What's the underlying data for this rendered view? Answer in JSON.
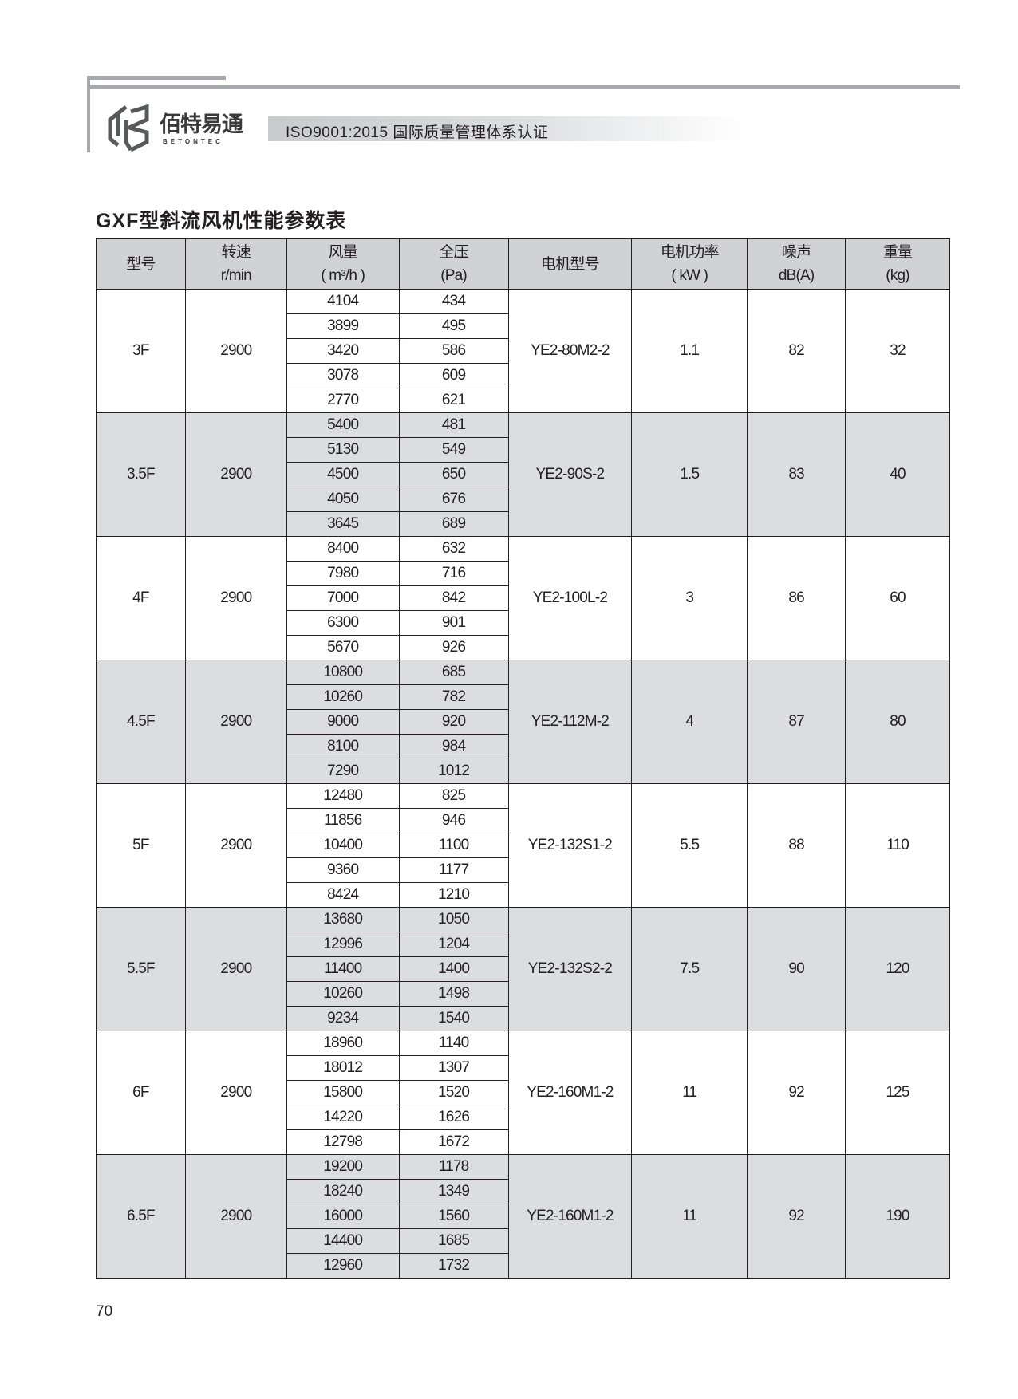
{
  "header": {
    "logo_cn": "佰特易通",
    "logo_en": "BETONTEC",
    "certification": "ISO9001:2015 国际质量管理体系认证"
  },
  "colors": {
    "rule": "#a7a9ac",
    "header_fill": "#d1d2d4",
    "shade_fill": "#dcdddf"
  },
  "title": "GXF型斜流风机性能参数表",
  "table": {
    "headers": [
      {
        "l1": "",
        "l2": "型号"
      },
      {
        "l1": "转速",
        "l2": "r/min"
      },
      {
        "l1": "风量",
        "l2": "( m³/h )"
      },
      {
        "l1": "全压",
        "l2": "(Pa)"
      },
      {
        "l1": "",
        "l2": "电机型号"
      },
      {
        "l1": "电机功率",
        "l2": "( kW )"
      },
      {
        "l1": "噪声",
        "l2": "dB(A)"
      },
      {
        "l1": "重量",
        "l2": "(kg)"
      }
    ],
    "groups": [
      {
        "model": "3F",
        "speed": "2900",
        "flow": [
          "4104",
          "3899",
          "3420",
          "3078",
          "2770"
        ],
        "pressure": [
          "434",
          "495",
          "586",
          "609",
          "621"
        ],
        "motor": "YE2-80M2-2",
        "power": "1.1",
        "noise": "82",
        "weight": "32"
      },
      {
        "model": "3.5F",
        "speed": "2900",
        "flow": [
          "5400",
          "5130",
          "4500",
          "4050",
          "3645"
        ],
        "pressure": [
          "481",
          "549",
          "650",
          "676",
          "689"
        ],
        "motor": "YE2-90S-2",
        "power": "1.5",
        "noise": "83",
        "weight": "40"
      },
      {
        "model": "4F",
        "speed": "2900",
        "flow": [
          "8400",
          "7980",
          "7000",
          "6300",
          "5670"
        ],
        "pressure": [
          "632",
          "716",
          "842",
          "901",
          "926"
        ],
        "motor": "YE2-100L-2",
        "power": "3",
        "noise": "86",
        "weight": "60"
      },
      {
        "model": "4.5F",
        "speed": "2900",
        "flow": [
          "10800",
          "10260",
          "9000",
          "8100",
          "7290"
        ],
        "pressure": [
          "685",
          "782",
          "920",
          "984",
          "1012"
        ],
        "motor": "YE2-112M-2",
        "power": "4",
        "noise": "87",
        "weight": "80"
      },
      {
        "model": "5F",
        "speed": "2900",
        "flow": [
          "12480",
          "11856",
          "10400",
          "9360",
          "8424"
        ],
        "pressure": [
          "825",
          "946",
          "1100",
          "1177",
          "1210"
        ],
        "motor": "YE2-132S1-2",
        "power": "5.5",
        "noise": "88",
        "weight": "110"
      },
      {
        "model": "5.5F",
        "speed": "2900",
        "flow": [
          "13680",
          "12996",
          "11400",
          "10260",
          "9234"
        ],
        "pressure": [
          "1050",
          "1204",
          "1400",
          "1498",
          "1540"
        ],
        "motor": "YE2-132S2-2",
        "power": "7.5",
        "noise": "90",
        "weight": "120"
      },
      {
        "model": "6F",
        "speed": "2900",
        "flow": [
          "18960",
          "18012",
          "15800",
          "14220",
          "12798"
        ],
        "pressure": [
          "1140",
          "1307",
          "1520",
          "1626",
          "1672"
        ],
        "motor": "YE2-160M1-2",
        "power": "11",
        "noise": "92",
        "weight": "125"
      },
      {
        "model": "6.5F",
        "speed": "2900",
        "flow": [
          "19200",
          "18240",
          "16000",
          "14400",
          "12960"
        ],
        "pressure": [
          "1178",
          "1349",
          "1560",
          "1685",
          "1732"
        ],
        "motor": "YE2-160M1-2",
        "power": "11",
        "noise": "92",
        "weight": "190"
      }
    ]
  },
  "page_number": "70"
}
